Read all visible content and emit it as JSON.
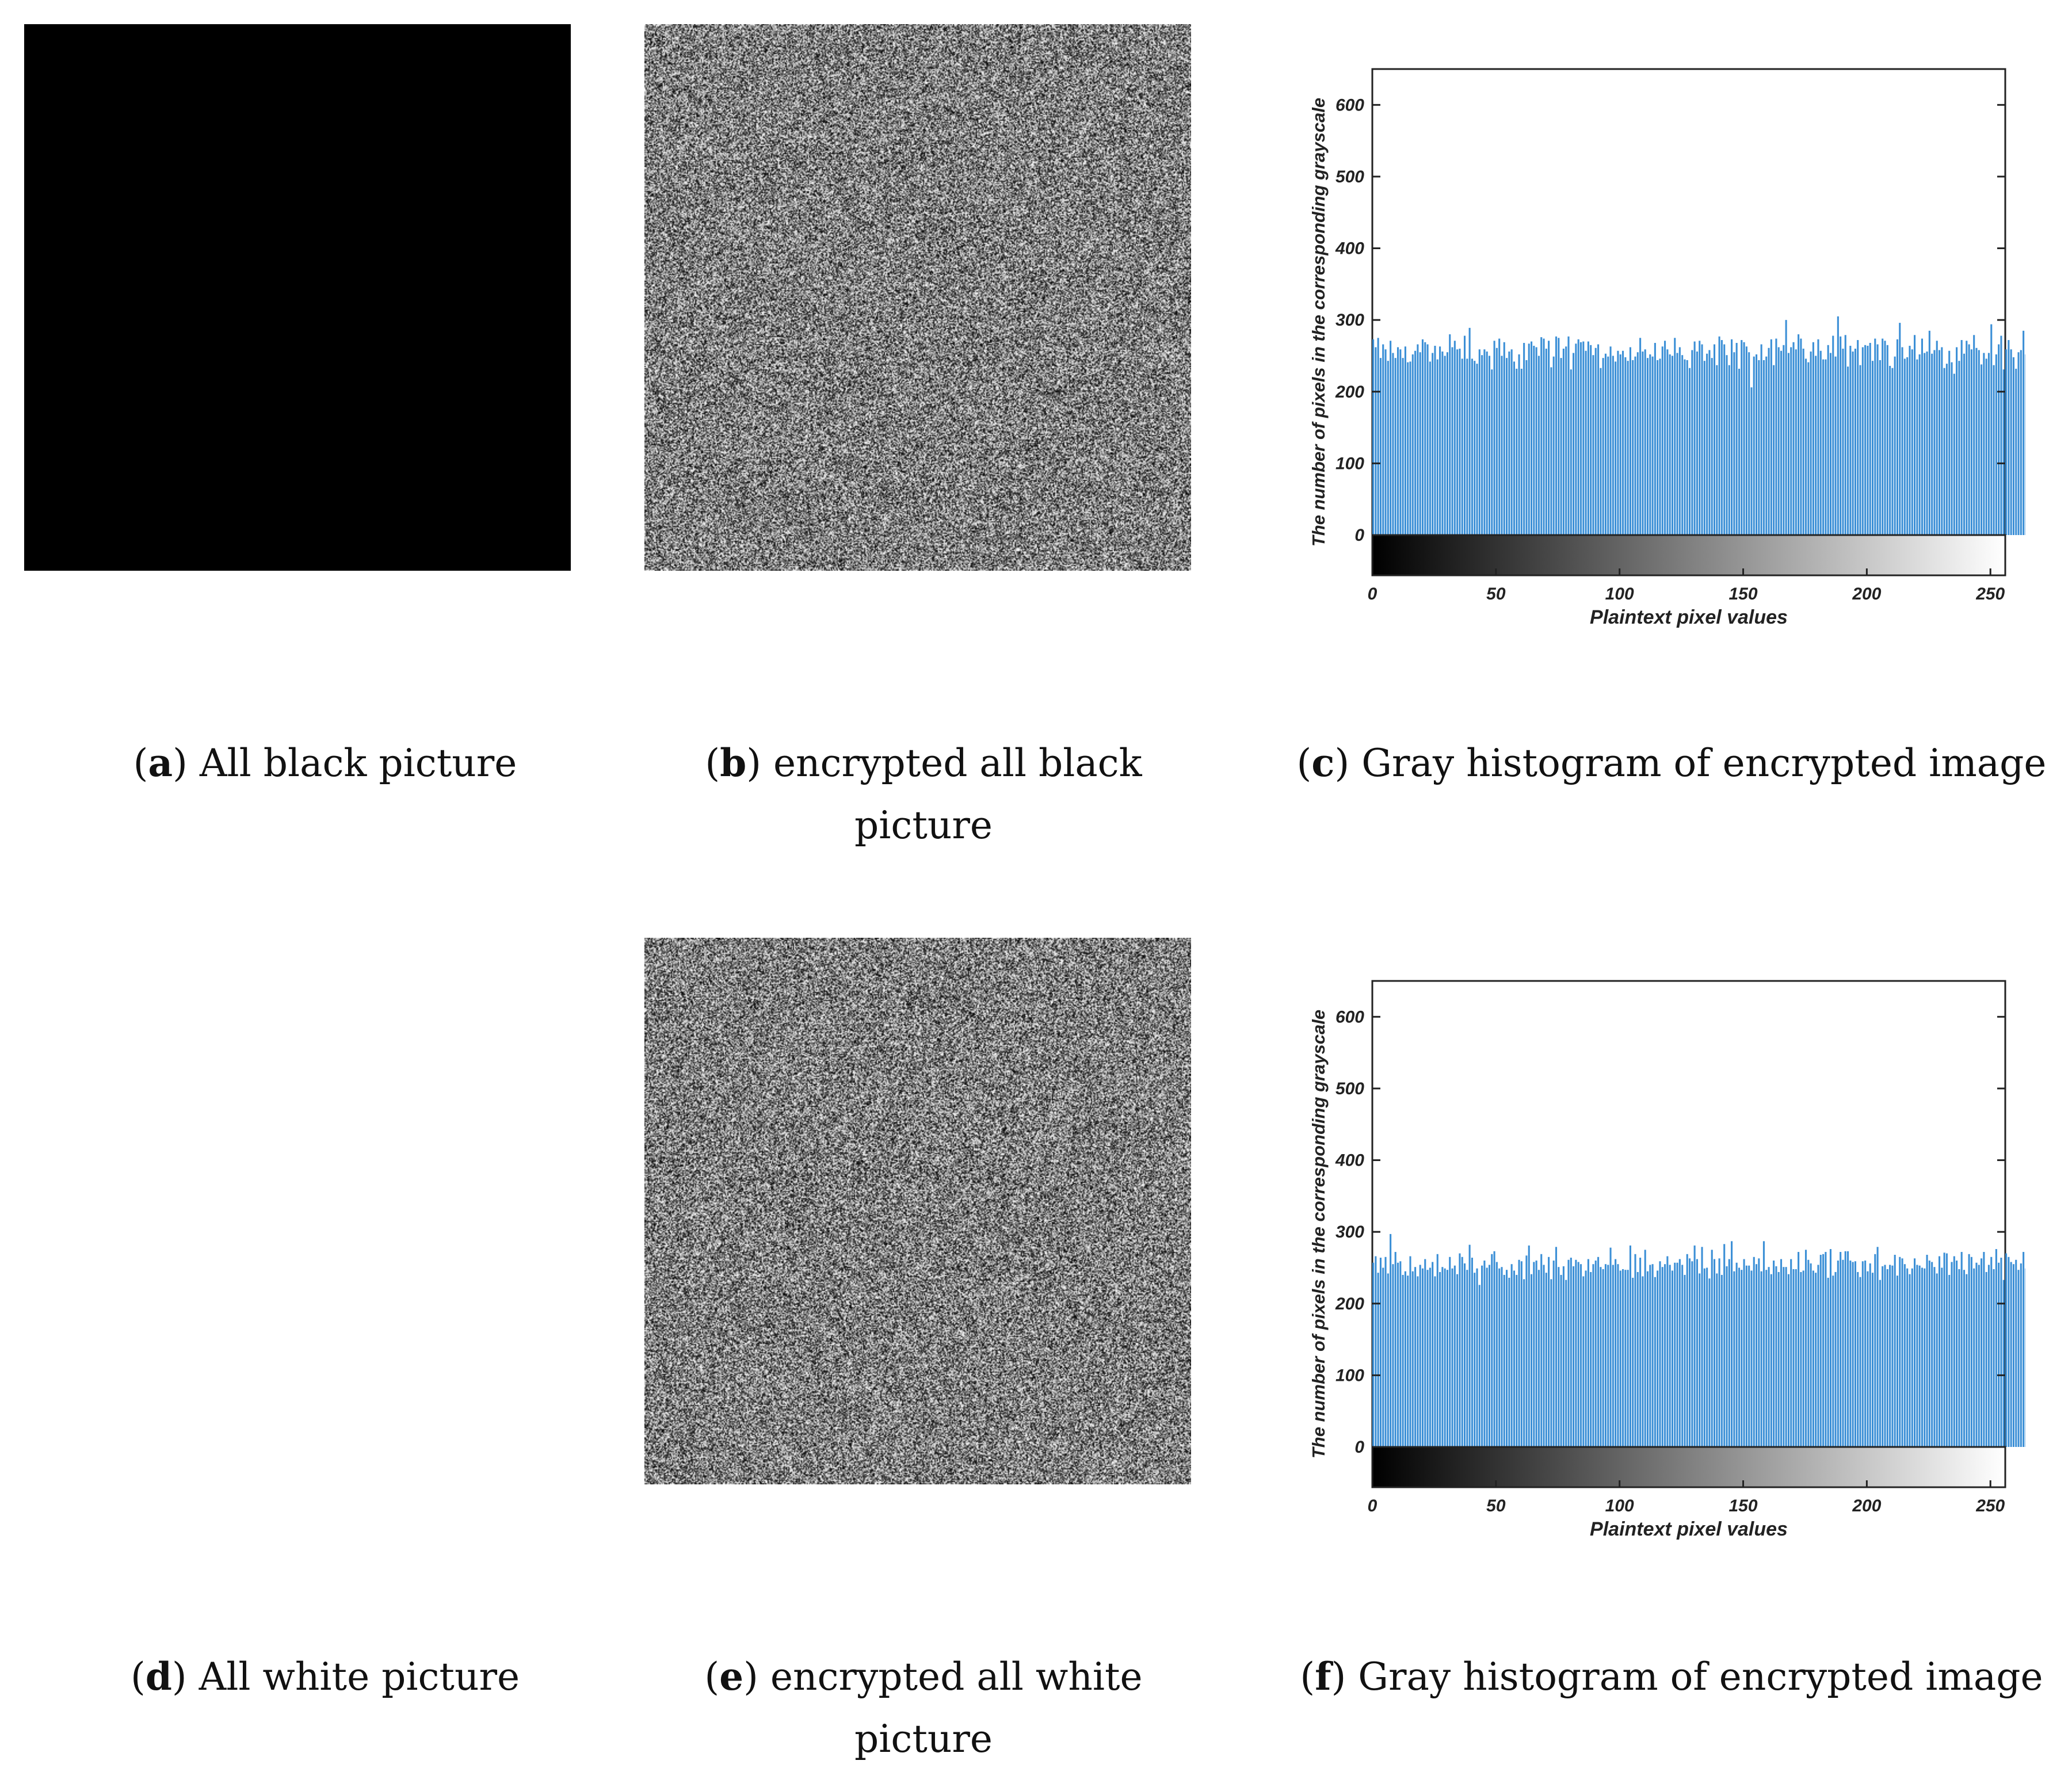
{
  "captions": {
    "a": {
      "letter": "a",
      "text": ") All black picture"
    },
    "b": {
      "letter": "b",
      "text": ") encrypted all black",
      "line2": "picture"
    },
    "c": {
      "letter": "c",
      "text": ") Gray histogram of encrypted image"
    },
    "d": {
      "letter": "d",
      "text": ") All white picture"
    },
    "e": {
      "letter": "e",
      "text": ") encrypted all white",
      "line2": "picture"
    },
    "f": {
      "letter": "f",
      "text": ") Gray histogram of encrypted image"
    }
  },
  "colors": {
    "bar": "#3b8fd6",
    "black_image": "#000000",
    "white_image": "#ffffff"
  },
  "chart_data": [
    {
      "type": "bar",
      "panel": "c",
      "xlabel": "Plaintext pixel values",
      "ylabel": "The number of pixels in the corresponding grayscale",
      "xlim": [
        0,
        255
      ],
      "ylim": [
        0,
        650
      ],
      "xticks": [
        "0",
        "50",
        "100",
        "150",
        "200",
        "250"
      ],
      "yticks": [
        "0",
        "100",
        "200",
        "300",
        "400",
        "500",
        "600"
      ],
      "colorbar": "grayscale 0-255",
      "grid": false,
      "values": [
        273,
        262,
        275,
        247,
        266,
        259,
        243,
        271,
        254,
        247,
        262,
        259,
        247,
        263,
        241,
        242,
        252,
        257,
        266,
        255,
        273,
        269,
        266,
        242,
        254,
        264,
        245,
        263,
        256,
        250,
        255,
        280,
        262,
        271,
        259,
        260,
        246,
        278,
        246,
        289,
        246,
        243,
        239,
        259,
        251,
        259,
        256,
        250,
        231,
        271,
        261,
        274,
        250,
        269,
        247,
        256,
        259,
        242,
        232,
        252,
        232,
        268,
        244,
        267,
        270,
        264,
        262,
        250,
        276,
        274,
        260,
        271,
        234,
        249,
        277,
        275,
        247,
        260,
        263,
        277,
        231,
        254,
        267,
        273,
        269,
        270,
        257,
        270,
        265,
        251,
        261,
        266,
        233,
        247,
        253,
        249,
        263,
        250,
        242,
        257,
        252,
        257,
        248,
        243,
        262,
        244,
        249,
        255,
        275,
        256,
        259,
        247,
        252,
        249,
        268,
        244,
        246,
        263,
        271,
        259,
        252,
        250,
        275,
        254,
        262,
        251,
        245,
        244,
        233,
        258,
        270,
        256,
        271,
        266,
        243,
        253,
        258,
        247,
        266,
        237,
        277,
        272,
        266,
        251,
        237,
        273,
        255,
        268,
        232,
        272,
        269,
        263,
        255,
        206,
        249,
        252,
        244,
        266,
        244,
        249,
        261,
        273,
        237,
        274,
        262,
        257,
        265,
        300,
        254,
        262,
        269,
        259,
        280,
        274,
        260,
        246,
        241,
        256,
        269,
        250,
        273,
        257,
        245,
        245,
        265,
        254,
        278,
        249,
        305,
        277,
        260,
        279,
        235,
        264,
        256,
        260,
        272,
        237,
        262,
        265,
        264,
        268,
        243,
        274,
        266,
        244,
        274,
        271,
        265,
        236,
        233,
        249,
        273,
        296,
        262,
        246,
        248,
        264,
        259,
        279,
        245,
        252,
        274,
        254,
        256,
        285,
        253,
        258,
        271,
        258,
        262,
        233,
        239,
        257,
        241,
        225,
        262,
        243,
        272,
        253,
        271,
        266,
        259,
        279,
        261,
        258,
        238,
        254,
        246,
        254,
        294,
        237,
        252,
        266,
        278,
        231,
        259,
        272,
        259,
        248,
        232,
        255,
        258,
        285,
        252,
        272,
        246,
        225,
        245,
        295,
        239,
        277,
        257,
        247,
        258,
        236
      ]
    },
    {
      "type": "bar",
      "panel": "f",
      "xlabel": "Plaintext pixel values",
      "ylabel": "The number of pixels in the corresponding grayscale",
      "xlim": [
        0,
        255
      ],
      "ylim": [
        0,
        650
      ],
      "xticks": [
        "0",
        "50",
        "100",
        "150",
        "200",
        "250"
      ],
      "yticks": [
        "0",
        "100",
        "200",
        "300",
        "400",
        "500",
        "600"
      ],
      "colorbar": "grayscale 0-255",
      "grid": false,
      "values": [
        257,
        266,
        243,
        264,
        250,
        265,
        242,
        297,
        255,
        272,
        257,
        259,
        240,
        245,
        239,
        266,
        245,
        251,
        238,
        254,
        249,
        262,
        247,
        250,
        258,
        238,
        269,
        244,
        251,
        249,
        247,
        265,
        249,
        253,
        241,
        270,
        265,
        256,
        247,
        282,
        264,
        243,
        249,
        226,
        253,
        260,
        250,
        254,
        269,
        273,
        258,
        249,
        251,
        240,
        247,
        236,
        255,
        246,
        240,
        261,
        259,
        234,
        267,
        281,
        241,
        258,
        260,
        247,
        269,
        254,
        243,
        265,
        234,
        260,
        279,
        251,
        240,
        252,
        233,
        261,
        264,
        252,
        261,
        258,
        255,
        238,
        246,
        262,
        244,
        255,
        260,
        265,
        251,
        248,
        255,
        254,
        278,
        254,
        262,
        255,
        246,
        248,
        247,
        247,
        281,
        236,
        269,
        244,
        264,
        238,
        275,
        245,
        254,
        255,
        237,
        246,
        259,
        251,
        255,
        266,
        254,
        246,
        257,
        257,
        262,
        254,
        240,
        269,
        263,
        259,
        281,
        262,
        242,
        279,
        249,
        250,
        235,
        275,
        262,
        242,
        263,
        240,
        283,
        252,
        262,
        287,
        245,
        257,
        250,
        247,
        262,
        253,
        253,
        246,
        265,
        255,
        263,
        245,
        287,
        247,
        251,
        241,
        260,
        252,
        244,
        262,
        251,
        251,
        241,
        262,
        248,
        248,
        272,
        244,
        246,
        275,
        261,
        256,
        246,
        243,
        254,
        268,
        269,
        272,
        236,
        276,
        239,
        244,
        260,
        272,
        261,
        273,
        273,
        260,
        258,
        259,
        244,
        237,
        259,
        260,
        245,
        256,
        243,
        269,
        279,
        233,
        252,
        254,
        248,
        254,
        253,
        268,
        239,
        265,
        263,
        255,
        249,
        241,
        249,
        263,
        254,
        253,
        250,
        249,
        268,
        260,
        258,
        251,
        242,
        266,
        250,
        271,
        270,
        240,
        258,
        266,
        260,
        248,
        272,
        247,
        241,
        269,
        265,
        249,
        257,
        254,
        263,
        272,
        244,
        254,
        265,
        248,
        276,
        257,
        264,
        233,
        270,
        265,
        258,
        255,
        261,
        247,
        256,
        272,
        249,
        240
      ]
    }
  ]
}
